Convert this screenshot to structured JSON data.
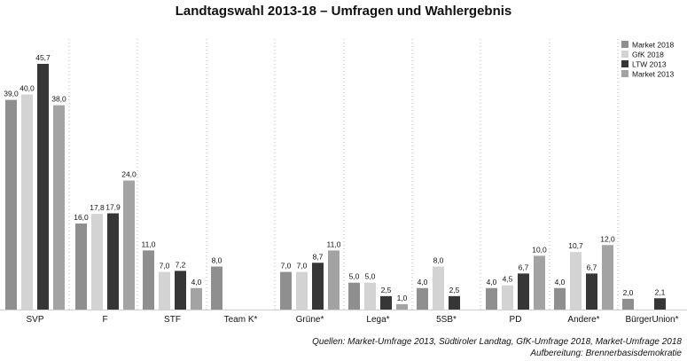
{
  "chart_data": {
    "type": "bar",
    "title": "Landtagswahl 2013-18 – Umfragen und Wahlergebnis",
    "xlabel": "",
    "ylabel": "",
    "ylim": [
      0,
      50
    ],
    "grid": "dotted vertical separators between groups",
    "legend_position": "top-right",
    "categories": [
      "SVP",
      "F",
      "STF",
      "Team K*",
      "Grüne*",
      "Lega*",
      "5SB*",
      "PD",
      "Andere*",
      "BürgerUnion*"
    ],
    "series": [
      {
        "name": "Market 2018",
        "color": "#8f8f8f",
        "values": [
          39.0,
          16.0,
          11.0,
          8.0,
          7.0,
          5.0,
          4.0,
          4.0,
          4.0,
          2.0
        ],
        "labels": [
          "39,0",
          "16,0",
          "11,0",
          "8,0",
          "7,0",
          "5,0",
          "4,0",
          "4,0",
          "4,0",
          "2,0"
        ]
      },
      {
        "name": "GfK 2018",
        "color": "#d3d3d3",
        "values": [
          40.0,
          17.8,
          7.0,
          null,
          7.0,
          5.0,
          8.0,
          4.5,
          10.7,
          null
        ],
        "labels": [
          "40,0",
          "17,8",
          "7,0",
          "",
          "7,0",
          "5,0",
          "8,0",
          "4,5",
          "10,7",
          ""
        ]
      },
      {
        "name": "LTW 2013",
        "color": "#363636",
        "values": [
          45.7,
          17.9,
          7.2,
          null,
          8.7,
          2.5,
          2.5,
          6.7,
          6.7,
          2.1
        ],
        "labels": [
          "45,7",
          "17,9",
          "7,2",
          "",
          "8,7",
          "2,5",
          "2,5",
          "6,7",
          "6,7",
          "2,1"
        ]
      },
      {
        "name": "Market 2013",
        "color": "#a3a3a3",
        "values": [
          38.0,
          24.0,
          4.0,
          null,
          11.0,
          1.0,
          null,
          10.0,
          12.0,
          null
        ],
        "labels": [
          "38,0",
          "24,0",
          "4,0",
          "",
          "11,0",
          "1,0",
          "",
          "10,0",
          "12,0",
          ""
        ]
      }
    ]
  },
  "footer": {
    "source": "Quellen: Market-Umfrage 2013, Südtiroler Landtag, GfK-Umfrage 2018, Market-Umfrage 2018",
    "credit": "Aufbereitung: Brennerbasisdemokratie"
  }
}
